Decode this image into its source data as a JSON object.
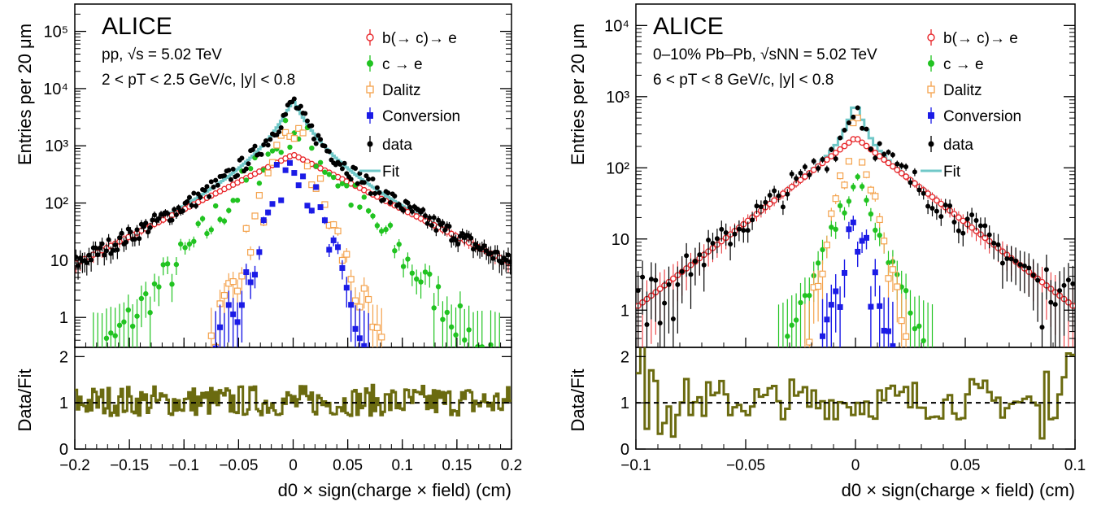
{
  "experiment": "ALICE",
  "xlabel": "d0 × sign(charge × field) (cm)",
  "ylabel_top": "Entries per 20 μm",
  "ylabel_ratio": "Data/Fit",
  "legend_labels": {
    "btoe": "b(→ c)→ e",
    "ctoe": "c → e",
    "dalitz": "Dalitz",
    "conversion": "Conversion",
    "data": "data",
    "fit": "Fit"
  },
  "colors": {
    "btoe": "#e8262a",
    "ctoe": "#21c321",
    "dalitz": "#f4a24c",
    "conversion": "#1b1be6",
    "data": "#000000",
    "fit": "#70c8c8",
    "ratio": "#6b6b10"
  },
  "chart_data": [
    {
      "type": "scatter",
      "panel": "left",
      "system": "pp, √s = 5.02 TeV",
      "kinematics": "2 < pT < 2.5 GeV/c, |y| < 0.8",
      "xlim": [
        -0.2,
        0.2
      ],
      "ylim_log": [
        0.3,
        300000
      ],
      "y_scale": "log",
      "x_ticks": [
        "−0.2",
        "−0.15",
        "−0.1",
        "−0.05",
        "0",
        "0.05",
        "0.1",
        "0.15",
        "0.2"
      ],
      "y_tick_labels": [
        "1",
        "10",
        "10²",
        "10³",
        "10⁴",
        "10⁵"
      ],
      "ratio_ylim": [
        0,
        2.2
      ],
      "ratio_ticks": [
        "0",
        "1",
        "2"
      ],
      "series": [
        {
          "name": "b(→ c)→ e",
          "shape": "exponential",
          "peak": 650,
          "slope": 22,
          "floor": 0,
          "noise": 0
        },
        {
          "name": "c → e",
          "shape": "exponential",
          "peak": 2000,
          "slope": 52,
          "floor": 0,
          "noise": 0.25
        },
        {
          "name": "Dalitz",
          "shape": "exponential",
          "peak": 2200,
          "slope": 115,
          "floor": 0,
          "noise": 0.3
        },
        {
          "name": "Conversion",
          "shape": "exponential",
          "peak": 1000,
          "slope": 125,
          "floor": 0,
          "noise": 0.35
        },
        {
          "name": "data",
          "shape": "sum",
          "peak": 5800,
          "noise": 0.15
        },
        {
          "name": "Fit",
          "shape": "sum_line",
          "peak": 5800
        }
      ]
    },
    {
      "type": "scatter",
      "panel": "right",
      "system": "0–10% Pb–Pb, √sNN = 5.02 TeV",
      "kinematics": "6 < pT < 8 GeV/c, |y| < 0.8",
      "xlim": [
        -0.1,
        0.1
      ],
      "ylim_log": [
        0.3,
        20000
      ],
      "y_scale": "log",
      "x_ticks": [
        "−0.1",
        "−0.05",
        "0",
        "0.05",
        "0.1"
      ],
      "y_tick_labels": [
        "1",
        "10",
        "10²",
        "10³",
        "10⁴"
      ],
      "ratio_ylim": [
        0,
        2.2
      ],
      "ratio_ticks": [
        "0",
        "1",
        "2"
      ],
      "series": [
        {
          "name": "b(→ c)→ e",
          "shape": "exponential",
          "peak": 260,
          "slope": 55,
          "floor": 0,
          "noise": 0
        },
        {
          "name": "c → e",
          "shape": "exponential",
          "peak": 70,
          "slope": 170,
          "floor": 0,
          "noise": 0.1
        },
        {
          "name": "Dalitz",
          "shape": "exponential",
          "peak": 500,
          "slope": 320,
          "floor": 0,
          "noise": 0.2
        },
        {
          "name": "Conversion",
          "shape": "exponential",
          "peak": 20,
          "slope": 290,
          "floor": 0,
          "noise": 0.3
        },
        {
          "name": "data",
          "shape": "sum",
          "peak": 700,
          "noise": 0.2
        },
        {
          "name": "Fit",
          "shape": "sum_line",
          "peak": 700
        }
      ]
    }
  ]
}
